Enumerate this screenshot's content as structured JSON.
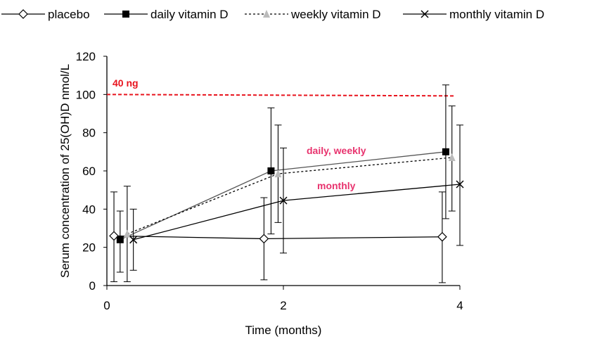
{
  "chart_data": {
    "type": "line",
    "xlabel": "Time (months)",
    "ylabel": "Serum concentration of 25(OH)D nmol/L",
    "xlim": [
      0,
      4
    ],
    "ylim": [
      0,
      120
    ],
    "xticks": [
      0,
      2,
      4
    ],
    "yticks": [
      0,
      20,
      40,
      60,
      80,
      100,
      120
    ],
    "grid": false,
    "legend_position": "top",
    "series": [
      {
        "name": "placebo",
        "marker": "diamond-open",
        "line": "solid",
        "color": "#000000",
        "x": [
          0.08,
          1.78,
          3.8
        ],
        "y": [
          26,
          24.5,
          25.5
        ],
        "err_low": [
          2,
          3,
          1.5
        ],
        "err_high": [
          49,
          46,
          49
        ]
      },
      {
        "name": "daily vitamin D",
        "marker": "square-filled",
        "line": "solid",
        "color": "#555555",
        "x": [
          0.15,
          1.86,
          3.84
        ],
        "y": [
          24,
          60,
          70
        ],
        "err_low": [
          7,
          27,
          35
        ],
        "err_high": [
          39,
          93,
          105
        ]
      },
      {
        "name": "weekly vitamin D",
        "marker": "triangle-gray",
        "line": "dotted",
        "color": "#000000",
        "x": [
          0.23,
          1.94,
          3.91
        ],
        "y": [
          27,
          58.5,
          67
        ],
        "err_low": [
          2,
          33,
          39
        ],
        "err_high": [
          52,
          84,
          94
        ]
      },
      {
        "name": "monthly vitamin D",
        "marker": "x",
        "line": "solid",
        "color": "#000000",
        "x": [
          0.3,
          2.0,
          4.0
        ],
        "y": [
          24,
          44.5,
          53
        ],
        "err_low": [
          8,
          17,
          21
        ],
        "err_high": [
          40,
          72,
          84
        ]
      }
    ],
    "reference_line": {
      "y": 100,
      "label": "40 ng",
      "color": "#e8141e"
    },
    "annotations": [
      {
        "text": "daily, weekly",
        "color": "#e8336e"
      },
      {
        "text": "monthly",
        "color": "#e8336e"
      }
    ]
  }
}
